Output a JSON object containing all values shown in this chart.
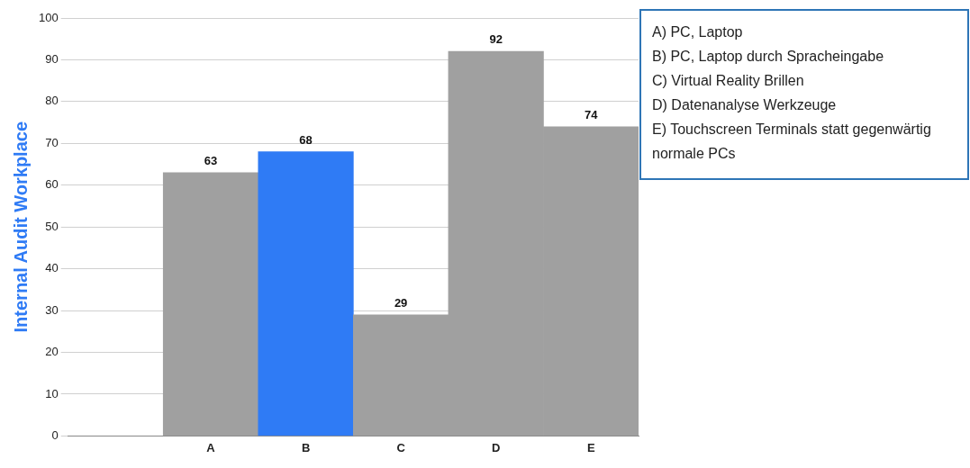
{
  "chart_data": {
    "type": "bar",
    "ylabel": "Internal Audit Workplace",
    "categories": [
      null,
      "A",
      "B",
      "C",
      "D",
      "E"
    ],
    "values": [
      null,
      63,
      68,
      29,
      92,
      74
    ],
    "colors": [
      "#a0a0a0",
      "#a0a0a0",
      "#2f7bf5",
      "#a0a0a0",
      "#a0a0a0",
      "#a0a0a0"
    ],
    "ylim": [
      0,
      100
    ],
    "yticks": [
      0,
      10,
      20,
      30,
      40,
      50,
      60,
      70,
      80,
      90,
      100
    ],
    "grid": "y",
    "data_labels": true,
    "legend": false,
    "annotations": [
      "A)  PC, Laptop",
      "B)  PC, Laptop durch Spracheingabe",
      "C)  Virtual Reality Brillen",
      "D)  Datenanalyse Werkzeuge",
      "E)  Touchscreen Terminals statt gegenwärtig normale PCs"
    ]
  }
}
